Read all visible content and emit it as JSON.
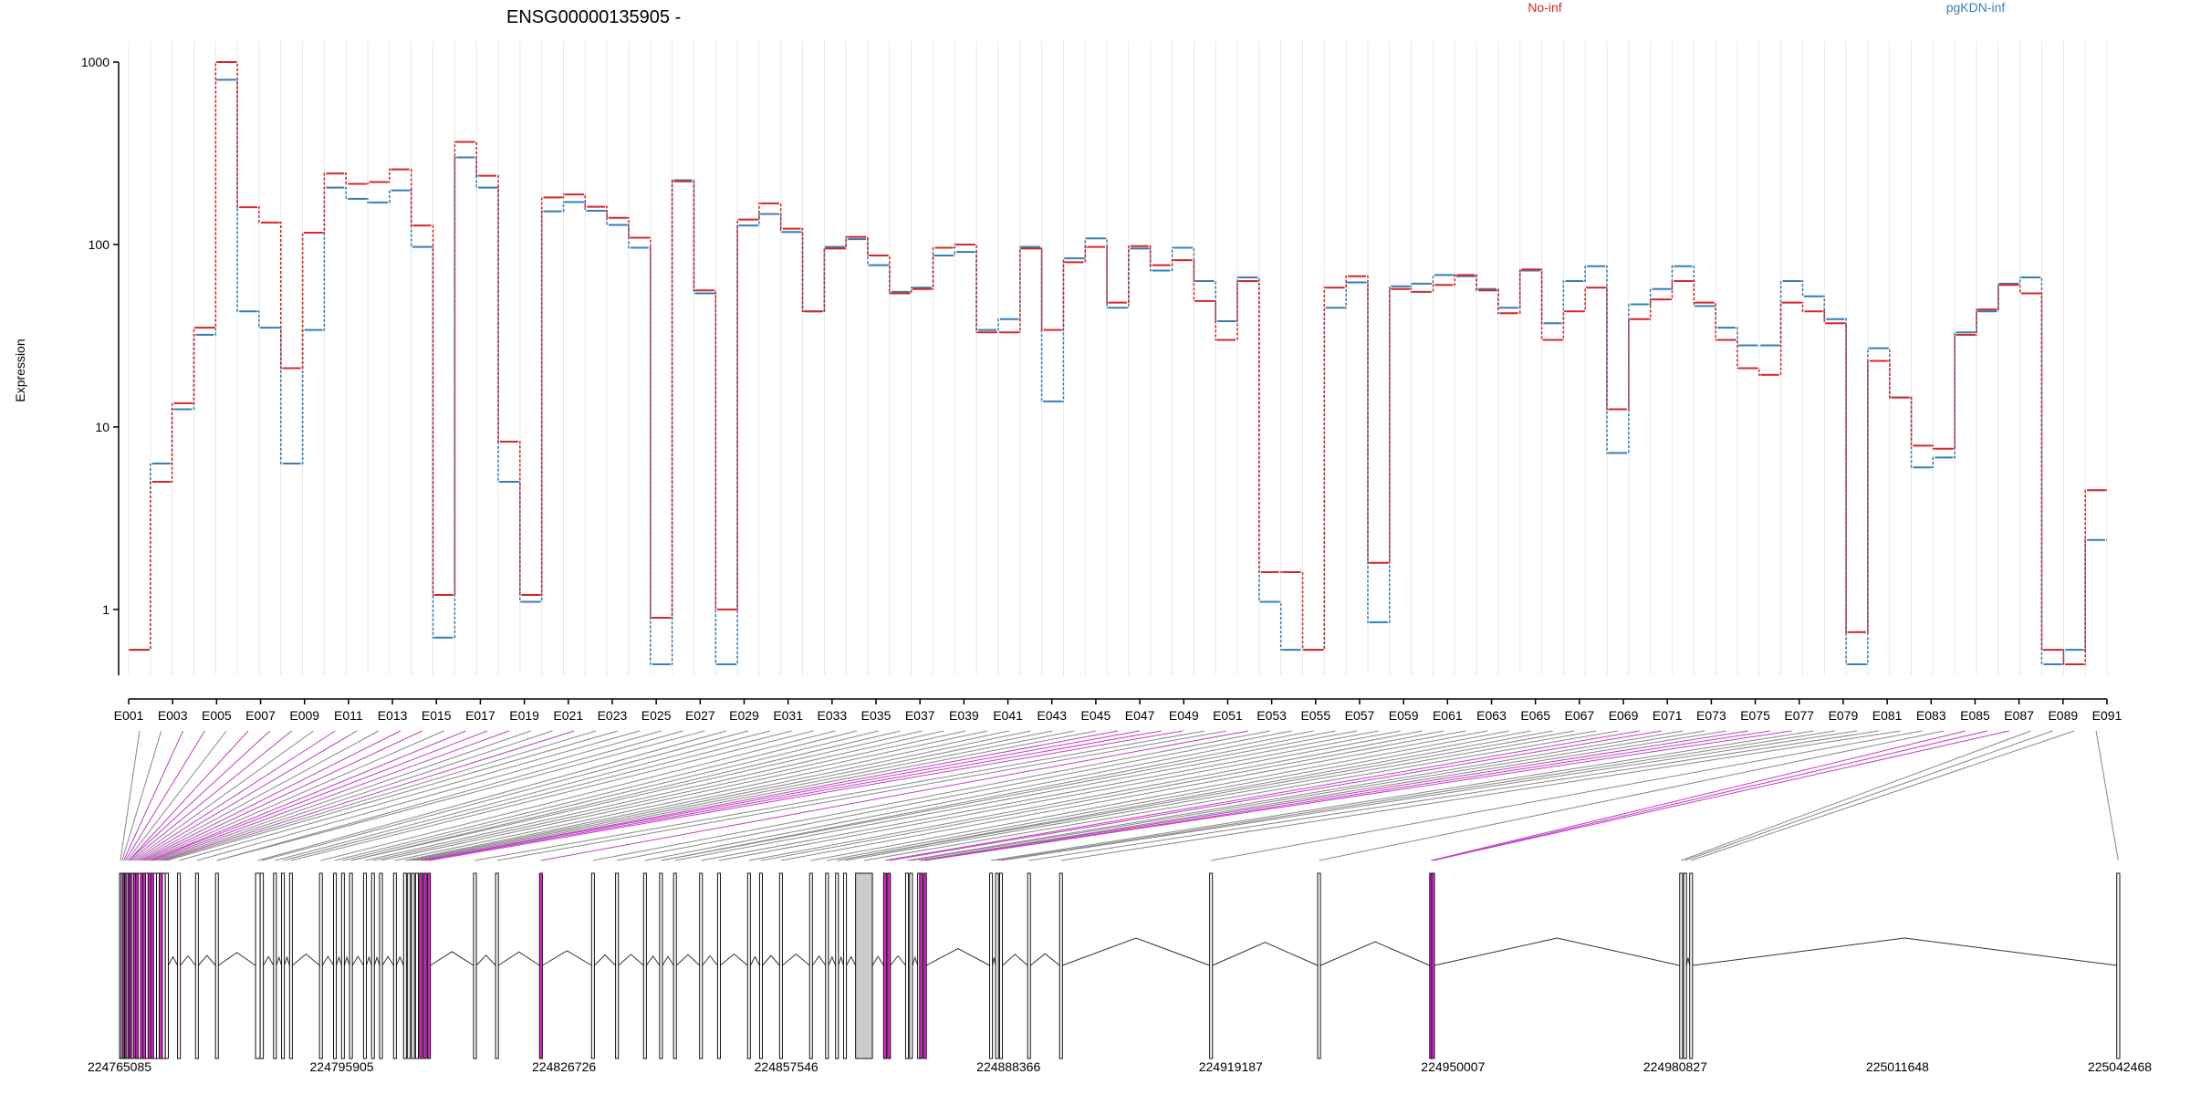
{
  "chart_data": {
    "type": "line",
    "title": "ENSG00000135905 -",
    "ylabel": "Expression",
    "xlabel": "",
    "y_scale": "log",
    "ylim": [
      0.5,
      1000
    ],
    "y_ticks": [
      "1000",
      "100",
      "10",
      "1"
    ],
    "legend_placement": "top",
    "grid": "vertical-light",
    "x_labels": [
      "E001",
      "E003",
      "E005",
      "E007",
      "E009",
      "E011",
      "E013",
      "E015",
      "E017",
      "E019",
      "E021",
      "E023",
      "E025",
      "E027",
      "E029",
      "E031",
      "E033",
      "E035",
      "E037",
      "E039",
      "E041",
      "E043",
      "E045",
      "E047",
      "E049",
      "E051",
      "E053",
      "E055",
      "E057",
      "E059",
      "E061",
      "E063",
      "E065",
      "E067",
      "E069",
      "E071",
      "E073",
      "E075",
      "E077",
      "E079",
      "E081",
      "E083",
      "E085",
      "E087",
      "E089",
      "E091"
    ],
    "series": [
      {
        "name": "No-inf",
        "color": "#d62728",
        "values": [
          0.6,
          5.0,
          13.5,
          35,
          1000,
          160,
          132,
          21,
          116,
          245,
          215,
          220,
          258,
          127,
          1.2,
          365,
          238,
          8.3,
          1.2,
          181,
          188,
          161,
          140,
          109,
          0.9,
          222,
          56,
          1.0,
          137,
          168,
          122,
          43,
          95,
          110,
          87,
          54,
          57,
          96,
          100,
          33,
          33,
          95,
          34,
          80,
          97,
          48,
          98,
          77,
          82,
          49,
          30,
          63,
          1.6,
          1.6,
          0.6,
          58,
          67,
          1.8,
          57,
          55,
          60,
          68,
          56,
          42,
          73,
          30,
          43,
          58,
          12.5,
          39,
          50,
          63,
          48,
          30,
          21,
          19.3,
          48,
          43,
          37,
          0.75,
          23,
          14.5,
          7.9,
          7.6,
          32,
          44,
          60,
          54,
          0.6,
          0.5,
          4.5
        ],
        "segments": 91
      },
      {
        "name": "pgKDN-inf",
        "color": "#377eb8",
        "values": [
          0.6,
          6.3,
          12.5,
          32,
          800,
          43,
          35,
          6.3,
          34,
          205,
          178,
          170,
          198,
          97,
          0.7,
          300,
          205,
          5.0,
          1.1,
          152,
          171,
          153,
          128,
          96,
          0.5,
          225,
          54,
          0.5,
          127,
          147,
          117,
          43,
          97,
          107,
          77,
          55,
          58,
          87,
          91,
          34,
          39,
          97,
          13.8,
          84,
          108,
          45,
          95,
          72,
          96,
          63,
          38,
          66,
          1.1,
          0.6,
          0.6,
          45,
          62,
          0.85,
          59,
          61,
          68,
          67,
          57,
          45,
          72,
          37,
          63,
          76,
          7.2,
          47,
          57,
          76,
          46,
          35,
          28,
          28,
          63,
          52,
          39,
          0.5,
          27,
          14.5,
          6.0,
          6.8,
          33,
          43,
          61,
          66,
          0.5,
          0.6,
          2.4
        ]
      }
    ],
    "genomic_coordinates": [
      "224765085",
      "224795905",
      "224826726",
      "224857546",
      "224888366",
      "224919187",
      "224950007",
      "224980827",
      "225011648",
      "225042468"
    ],
    "coord_range": [
      224765085,
      225042468
    ],
    "exon_bins": [
      [
        0,
        0.00085,
        "g"
      ],
      [
        0.00085,
        0.0017,
        "g"
      ],
      [
        0.0017,
        0.0025,
        "m"
      ],
      [
        0.0025,
        0.0033,
        "m"
      ],
      [
        0.0033,
        0.0042,
        "g"
      ],
      [
        0.0042,
        0.0051,
        "m"
      ],
      [
        0.0051,
        0.006,
        "m"
      ],
      [
        0.006,
        0.007,
        "g"
      ],
      [
        0.007,
        0.0081,
        "m"
      ],
      [
        0.0081,
        0.0093,
        "m"
      ],
      [
        0.0093,
        0.0105,
        "g"
      ],
      [
        0.0105,
        0.0117,
        "m"
      ],
      [
        0.0117,
        0.013,
        "m"
      ],
      [
        0.013,
        0.0143,
        "g"
      ],
      [
        0.0143,
        0.0156,
        "m"
      ],
      [
        0.0156,
        0.017,
        "m"
      ],
      [
        0.017,
        0.0185,
        "g"
      ],
      [
        0.0185,
        0.0199,
        "g"
      ],
      [
        0.0199,
        0.0214,
        "m"
      ],
      [
        0.0214,
        0.0229,
        "g"
      ],
      [
        0.0229,
        0.0244,
        "g"
      ],
      [
        0.029,
        0.0304,
        "g"
      ],
      [
        0.038,
        0.0394,
        "g"
      ],
      [
        0.048,
        0.0494,
        "g"
      ],
      [
        0.068,
        0.0703,
        "g"
      ],
      [
        0.0703,
        0.0719,
        "g"
      ],
      [
        0.077,
        0.0784,
        "g"
      ],
      [
        0.081,
        0.0824,
        "g"
      ],
      [
        0.085,
        0.0864,
        "g"
      ],
      [
        0.1,
        0.1014,
        "g"
      ],
      [
        0.107,
        0.1084,
        "g"
      ],
      [
        0.111,
        0.1124,
        "g"
      ],
      [
        0.115,
        0.1164,
        "g"
      ],
      [
        0.122,
        0.1234,
        "g"
      ],
      [
        0.126,
        0.1274,
        "g"
      ],
      [
        0.13,
        0.1314,
        "g"
      ],
      [
        0.137,
        0.1384,
        "g"
      ],
      [
        0.142,
        0.1434,
        "g"
      ],
      [
        0.144,
        0.1454,
        "g"
      ],
      [
        0.146,
        0.1474,
        "g"
      ],
      [
        0.148,
        0.1494,
        "g"
      ],
      [
        0.15,
        0.1514,
        "m"
      ],
      [
        0.152,
        0.1534,
        "m"
      ],
      [
        0.154,
        0.1554,
        "m"
      ],
      [
        0.177,
        0.1784,
        "g"
      ],
      [
        0.188,
        0.1894,
        "g"
      ],
      [
        0.21,
        0.2114,
        "m"
      ],
      [
        0.236,
        0.2374,
        "g"
      ],
      [
        0.248,
        0.2494,
        "g"
      ],
      [
        0.262,
        0.2634,
        "g"
      ],
      [
        0.27,
        0.2714,
        "g"
      ],
      [
        0.277,
        0.2784,
        "g"
      ],
      [
        0.29,
        0.2914,
        "g"
      ],
      [
        0.299,
        0.3004,
        "g"
      ],
      [
        0.314,
        0.3154,
        "g"
      ],
      [
        0.32,
        0.3214,
        "g"
      ],
      [
        0.33,
        0.3314,
        "g"
      ],
      [
        0.345,
        0.3464,
        "g"
      ],
      [
        0.353,
        0.3544,
        "g"
      ],
      [
        0.358,
        0.3594,
        "g"
      ],
      [
        0.362,
        0.3634,
        "g"
      ],
      [
        0.368,
        0.3764,
        "l"
      ],
      [
        0.382,
        0.3834,
        "m"
      ],
      [
        0.384,
        0.3854,
        "m"
      ],
      [
        0.393,
        0.3944,
        "g"
      ],
      [
        0.395,
        0.3964,
        "g"
      ],
      [
        0.399,
        0.4004,
        "g"
      ],
      [
        0.4,
        0.4014,
        "m"
      ],
      [
        0.402,
        0.4034,
        "m"
      ],
      [
        0.435,
        0.4364,
        "g"
      ],
      [
        0.438,
        0.4394,
        "g"
      ],
      [
        0.44,
        0.4414,
        "g"
      ],
      [
        0.454,
        0.4554,
        "g"
      ],
      [
        0.47,
        0.4714,
        "g"
      ],
      [
        0.545,
        0.5464,
        "g"
      ],
      [
        0.599,
        0.6004,
        "g"
      ],
      [
        0.655,
        0.6564,
        "m"
      ],
      [
        0.656,
        0.6574,
        "m"
      ],
      [
        0.78,
        0.7814,
        "g"
      ],
      [
        0.782,
        0.7834,
        "g"
      ],
      [
        0.785,
        0.7864,
        "g"
      ],
      [
        0.9985,
        1.0,
        "g"
      ]
    ]
  }
}
